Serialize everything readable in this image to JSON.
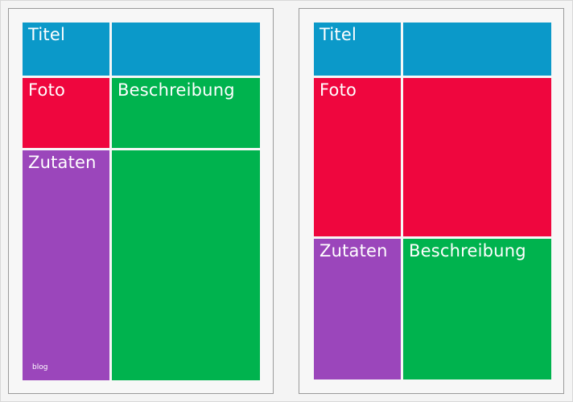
{
  "layout_a": {
    "title_label": "Titel",
    "photo_label": "Foto",
    "description_label": "Beschreibung",
    "ingredients_label": "Zutaten",
    "footer_label": "blog"
  },
  "layout_b": {
    "title_label": "Titel",
    "photo_label": "Foto",
    "ingredients_label": "Zutaten",
    "description_label": "Beschreibung"
  },
  "colors": {
    "title": "#0b99c9",
    "photo": "#ef063e",
    "description": "#00b34e",
    "ingredients": "#9b46bb",
    "page_background": "#f7f7f7"
  }
}
